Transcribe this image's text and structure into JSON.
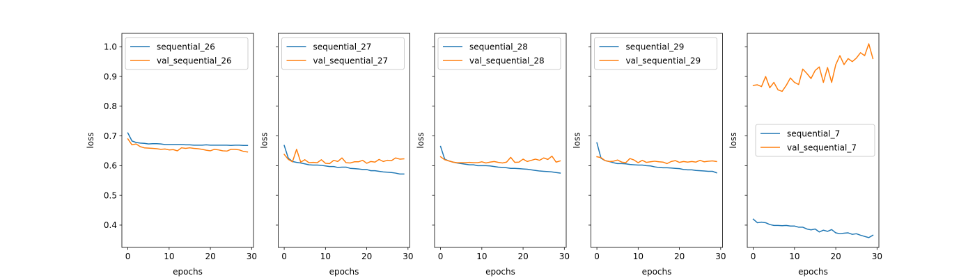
{
  "colors": {
    "train": "#1f77b4",
    "val": "#ff7f0e",
    "axis": "#000000",
    "legend_border": "#cccccc"
  },
  "chart_data": [
    {
      "type": "line",
      "xlabel": "epochs",
      "ylabel": "loss",
      "xlim": [
        -1.45,
        30.45
      ],
      "ylim": [
        0.325,
        1.045
      ],
      "xticks": [
        0,
        10,
        20,
        30
      ],
      "yticks": [
        0.4,
        0.5,
        0.6,
        0.7,
        0.8,
        0.9,
        1.0
      ],
      "show_yticklabels": true,
      "legend_loc": "upper-left",
      "x": [
        0,
        1,
        2,
        3,
        4,
        5,
        6,
        7,
        8,
        9,
        10,
        11,
        12,
        13,
        14,
        15,
        16,
        17,
        18,
        19,
        20,
        21,
        22,
        23,
        24,
        25,
        26,
        27,
        28,
        29
      ],
      "series": [
        {
          "name": "sequential_26",
          "color_key": "train",
          "values": [
            0.71,
            0.683,
            0.678,
            0.676,
            0.675,
            0.673,
            0.674,
            0.674,
            0.673,
            0.671,
            0.671,
            0.671,
            0.671,
            0.671,
            0.67,
            0.67,
            0.669,
            0.669,
            0.669,
            0.67,
            0.669,
            0.669,
            0.669,
            0.669,
            0.669,
            0.668,
            0.669,
            0.669,
            0.668,
            0.668
          ]
        },
        {
          "name": "val_sequential_26",
          "color_key": "val",
          "values": [
            0.69,
            0.67,
            0.673,
            0.664,
            0.66,
            0.659,
            0.658,
            0.657,
            0.655,
            0.656,
            0.653,
            0.654,
            0.65,
            0.66,
            0.658,
            0.66,
            0.658,
            0.657,
            0.655,
            0.652,
            0.65,
            0.655,
            0.653,
            0.65,
            0.649,
            0.655,
            0.655,
            0.653,
            0.648,
            0.646
          ]
        }
      ]
    },
    {
      "type": "line",
      "xlabel": "epochs",
      "ylabel": "loss",
      "xlim": [
        -1.45,
        30.45
      ],
      "ylim": [
        0.325,
        1.045
      ],
      "xticks": [
        0,
        10,
        20,
        30
      ],
      "yticks": [
        0.4,
        0.5,
        0.6,
        0.7,
        0.8,
        0.9,
        1.0
      ],
      "show_yticklabels": false,
      "legend_loc": "upper-left",
      "x": [
        0,
        1,
        2,
        3,
        4,
        5,
        6,
        7,
        8,
        9,
        10,
        11,
        12,
        13,
        14,
        15,
        16,
        17,
        18,
        19,
        20,
        21,
        22,
        23,
        24,
        25,
        26,
        27,
        28,
        29
      ],
      "series": [
        {
          "name": "sequential_27",
          "color_key": "train",
          "values": [
            0.668,
            0.625,
            0.614,
            0.611,
            0.609,
            0.606,
            0.603,
            0.602,
            0.602,
            0.601,
            0.599,
            0.597,
            0.597,
            0.594,
            0.595,
            0.595,
            0.591,
            0.59,
            0.589,
            0.587,
            0.587,
            0.583,
            0.583,
            0.581,
            0.579,
            0.578,
            0.577,
            0.575,
            0.572,
            0.572
          ]
        },
        {
          "name": "val_sequential_27",
          "color_key": "val",
          "values": [
            0.638,
            0.621,
            0.613,
            0.655,
            0.612,
            0.62,
            0.61,
            0.611,
            0.61,
            0.62,
            0.608,
            0.607,
            0.618,
            0.614,
            0.626,
            0.61,
            0.609,
            0.613,
            0.613,
            0.618,
            0.608,
            0.614,
            0.612,
            0.621,
            0.614,
            0.618,
            0.617,
            0.626,
            0.622,
            0.623
          ]
        }
      ]
    },
    {
      "type": "line",
      "xlabel": "epochs",
      "ylabel": "loss",
      "xlim": [
        -1.45,
        30.45
      ],
      "ylim": [
        0.325,
        1.045
      ],
      "xticks": [
        0,
        10,
        20,
        30
      ],
      "yticks": [
        0.4,
        0.5,
        0.6,
        0.7,
        0.8,
        0.9,
        1.0
      ],
      "show_yticklabels": false,
      "legend_loc": "upper-left",
      "x": [
        0,
        1,
        2,
        3,
        4,
        5,
        6,
        7,
        8,
        9,
        10,
        11,
        12,
        13,
        14,
        15,
        16,
        17,
        18,
        19,
        20,
        21,
        22,
        23,
        24,
        25,
        26,
        27,
        28,
        29
      ],
      "series": [
        {
          "name": "sequential_28",
          "color_key": "train",
          "values": [
            0.665,
            0.622,
            0.616,
            0.612,
            0.609,
            0.607,
            0.605,
            0.603,
            0.603,
            0.6,
            0.6,
            0.6,
            0.599,
            0.597,
            0.595,
            0.594,
            0.593,
            0.591,
            0.591,
            0.59,
            0.589,
            0.588,
            0.586,
            0.584,
            0.582,
            0.581,
            0.58,
            0.579,
            0.577,
            0.575
          ]
        },
        {
          "name": "val_sequential_28",
          "color_key": "val",
          "values": [
            0.63,
            0.62,
            0.616,
            0.612,
            0.61,
            0.61,
            0.61,
            0.611,
            0.61,
            0.61,
            0.613,
            0.609,
            0.612,
            0.614,
            0.611,
            0.609,
            0.612,
            0.628,
            0.611,
            0.612,
            0.622,
            0.614,
            0.618,
            0.622,
            0.618,
            0.626,
            0.621,
            0.632,
            0.612,
            0.616
          ]
        }
      ]
    },
    {
      "type": "line",
      "xlabel": "epochs",
      "ylabel": "loss",
      "xlim": [
        -1.45,
        30.45
      ],
      "ylim": [
        0.325,
        1.045
      ],
      "xticks": [
        0,
        10,
        20,
        30
      ],
      "yticks": [
        0.4,
        0.5,
        0.6,
        0.7,
        0.8,
        0.9,
        1.0
      ],
      "show_yticklabels": false,
      "legend_loc": "upper-left",
      "x": [
        0,
        1,
        2,
        3,
        4,
        5,
        6,
        7,
        8,
        9,
        10,
        11,
        12,
        13,
        14,
        15,
        16,
        17,
        18,
        19,
        20,
        21,
        22,
        23,
        24,
        25,
        26,
        27,
        28,
        29
      ],
      "series": [
        {
          "name": "sequential_29",
          "color_key": "train",
          "values": [
            0.677,
            0.625,
            0.617,
            0.614,
            0.61,
            0.607,
            0.607,
            0.606,
            0.604,
            0.603,
            0.602,
            0.602,
            0.6,
            0.599,
            0.596,
            0.594,
            0.593,
            0.593,
            0.592,
            0.591,
            0.59,
            0.587,
            0.586,
            0.586,
            0.584,
            0.583,
            0.582,
            0.581,
            0.581,
            0.576
          ]
        },
        {
          "name": "val_sequential_29",
          "color_key": "val",
          "values": [
            0.63,
            0.627,
            0.617,
            0.614,
            0.615,
            0.619,
            0.612,
            0.61,
            0.624,
            0.619,
            0.61,
            0.618,
            0.611,
            0.613,
            0.615,
            0.613,
            0.612,
            0.607,
            0.614,
            0.617,
            0.611,
            0.614,
            0.612,
            0.614,
            0.612,
            0.618,
            0.613,
            0.615,
            0.616,
            0.614
          ]
        }
      ]
    },
    {
      "type": "line",
      "xlabel": "epochs",
      "ylabel": "loss",
      "xlim": [
        -1.45,
        30.45
      ],
      "ylim": [
        0.325,
        1.045
      ],
      "xticks": [
        0,
        10,
        20,
        30
      ],
      "yticks": [
        0.4,
        0.5,
        0.6,
        0.7,
        0.8,
        0.9,
        1.0
      ],
      "show_yticklabels": false,
      "legend_loc": "center-right",
      "x": [
        0,
        1,
        2,
        3,
        4,
        5,
        6,
        7,
        8,
        9,
        10,
        11,
        12,
        13,
        14,
        15,
        16,
        17,
        18,
        19,
        20,
        21,
        22,
        23,
        24,
        25,
        26,
        27,
        28,
        29
      ],
      "series": [
        {
          "name": "sequential_7",
          "color_key": "train",
          "values": [
            0.42,
            0.408,
            0.41,
            0.408,
            0.402,
            0.399,
            0.399,
            0.398,
            0.399,
            0.397,
            0.397,
            0.393,
            0.393,
            0.387,
            0.384,
            0.387,
            0.377,
            0.383,
            0.379,
            0.385,
            0.374,
            0.371,
            0.373,
            0.374,
            0.369,
            0.371,
            0.366,
            0.362,
            0.358,
            0.366
          ]
        },
        {
          "name": "val_sequential_7",
          "color_key": "val",
          "values": [
            0.87,
            0.872,
            0.866,
            0.9,
            0.862,
            0.88,
            0.855,
            0.85,
            0.87,
            0.895,
            0.88,
            0.873,
            0.925,
            0.91,
            0.893,
            0.92,
            0.932,
            0.88,
            0.93,
            0.88,
            0.94,
            0.97,
            0.94,
            0.96,
            0.95,
            0.962,
            0.98,
            0.97,
            1.01,
            0.96
          ]
        }
      ]
    }
  ]
}
